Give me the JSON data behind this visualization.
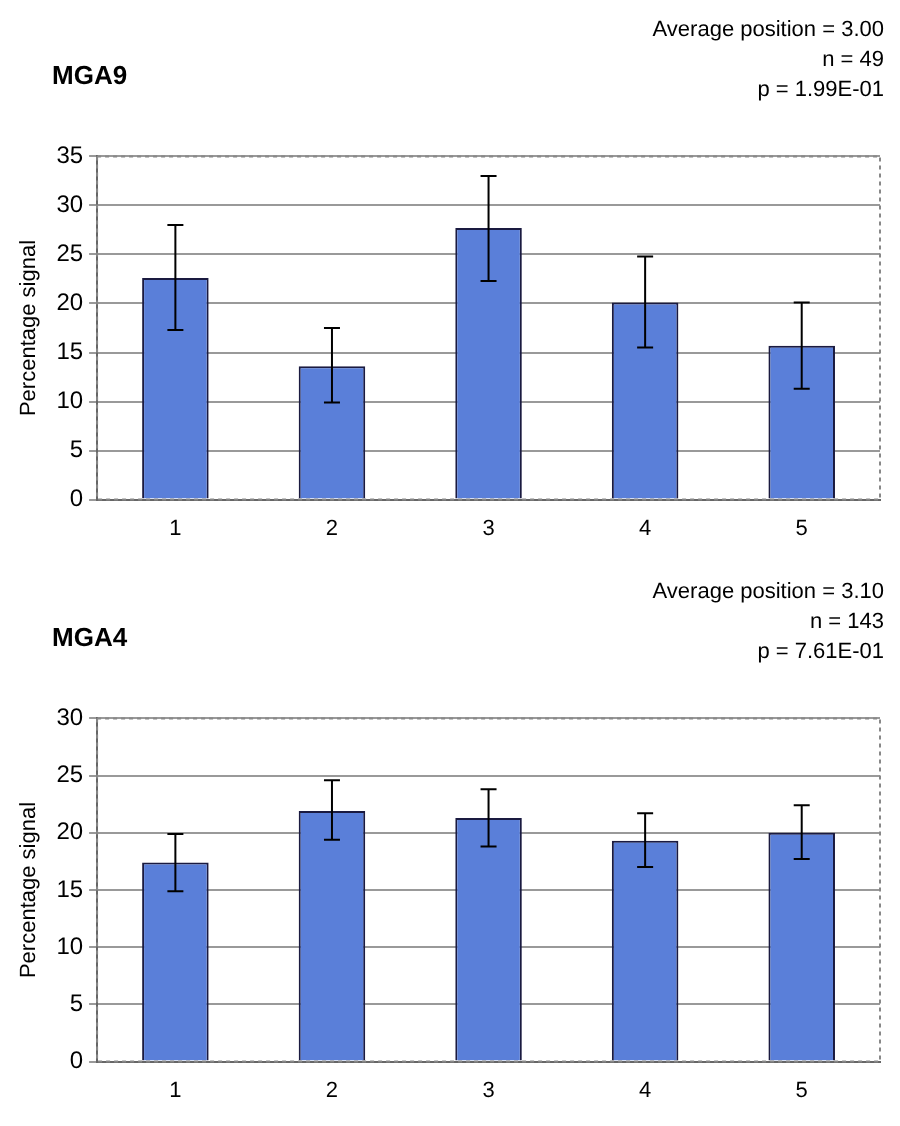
{
  "chart_data": [
    {
      "type": "bar",
      "title": "MGA9",
      "annotations": [
        "Average position = 3.00",
        "n = 49",
        "p = 1.99E-01"
      ],
      "ylabel": "Percentage signal",
      "categories": [
        "1",
        "2",
        "3",
        "4",
        "5"
      ],
      "values": [
        22.6,
        13.6,
        27.7,
        20.1,
        15.7
      ],
      "errors": [
        [
          17.3,
          28
        ],
        [
          9.9,
          17.5
        ],
        [
          22.3,
          33
        ],
        [
          15.5,
          24.8
        ],
        [
          11.3,
          20.1
        ]
      ],
      "color": "#5a7fd9",
      "ylim": [
        0,
        35
      ],
      "yticks": [
        0,
        5,
        10,
        15,
        20,
        25,
        30,
        35
      ],
      "grid": "y",
      "legend": false
    },
    {
      "type": "bar",
      "title": "MGA4",
      "annotations": [
        "Average position = 3.10",
        "n = 143",
        "p = 7.61E-01"
      ],
      "ylabel": "Percentage signal",
      "categories": [
        "1",
        "2",
        "3",
        "4",
        "5"
      ],
      "values": [
        17.4,
        21.9,
        21.3,
        19.3,
        20
      ],
      "errors": [
        [
          14.9,
          19.9
        ],
        [
          19.4,
          24.6
        ],
        [
          18.8,
          23.8
        ],
        [
          17,
          21.7
        ],
        [
          17.7,
          22.4
        ]
      ],
      "color": "#5a7fd9",
      "ylim": [
        0,
        30
      ],
      "yticks": [
        0,
        5,
        10,
        15,
        20,
        25,
        30
      ],
      "grid": "y",
      "legend": false
    }
  ]
}
